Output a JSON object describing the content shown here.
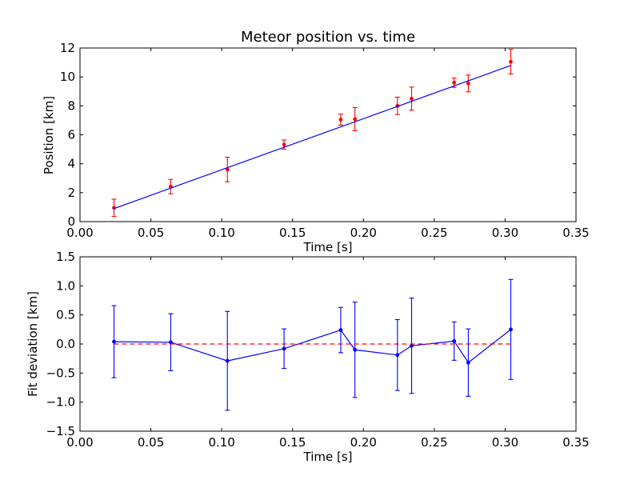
{
  "chart_data": [
    {
      "type": "scatter",
      "title": "Meteor position vs. time",
      "xlabel": "Time [s]",
      "ylabel": "Position [km]",
      "xlim": [
        0.0,
        0.35
      ],
      "ylim": [
        0,
        12
      ],
      "xticks": [
        "0.00",
        "0.05",
        "0.10",
        "0.15",
        "0.20",
        "0.25",
        "0.30",
        "0.35"
      ],
      "yticks": [
        "0",
        "2",
        "4",
        "6",
        "8",
        "10",
        "12"
      ],
      "grid": false,
      "series": [
        {
          "kind": "errorbar-points",
          "color": "#ff0000",
          "x": [
            0.024,
            0.064,
            0.104,
            0.144,
            0.184,
            0.194,
            0.224,
            0.234,
            0.264,
            0.274,
            0.304
          ],
          "y": [
            0.95,
            2.42,
            3.6,
            5.32,
            7.05,
            7.08,
            8.0,
            8.5,
            9.6,
            9.55,
            11.05
          ],
          "yerr": [
            0.6,
            0.5,
            0.85,
            0.32,
            0.38,
            0.8,
            0.6,
            0.8,
            0.32,
            0.58,
            0.85
          ]
        },
        {
          "kind": "fit-line",
          "color": "#0000ff",
          "x": [
            0.024,
            0.304
          ],
          "y": [
            0.9,
            10.79
          ]
        }
      ]
    },
    {
      "type": "line",
      "title": "",
      "xlabel": "Time [s]",
      "ylabel": "Fit deviation [km]",
      "xlim": [
        0.0,
        0.35
      ],
      "ylim": [
        -1.5,
        1.5
      ],
      "xticks": [
        "0.00",
        "0.05",
        "0.10",
        "0.15",
        "0.20",
        "0.25",
        "0.30",
        "0.35"
      ],
      "yticks": [
        "−1.5",
        "−1.0",
        "−0.5",
        "0.0",
        "0.5",
        "1.0",
        "1.5"
      ],
      "grid": false,
      "series": [
        {
          "kind": "errorbar-line",
          "color": "#0000ff",
          "x": [
            0.024,
            0.064,
            0.104,
            0.144,
            0.184,
            0.194,
            0.224,
            0.234,
            0.264,
            0.274,
            0.304
          ],
          "y": [
            0.04,
            0.03,
            -0.29,
            -0.08,
            0.24,
            -0.1,
            -0.19,
            -0.03,
            0.05,
            -0.32,
            0.25
          ],
          "yerr": [
            0.62,
            0.49,
            0.85,
            0.34,
            0.39,
            0.82,
            0.61,
            0.82,
            0.33,
            0.58,
            0.86
          ]
        },
        {
          "kind": "zero-reference",
          "color": "#ff0000",
          "x": [
            0.024,
            0.304
          ],
          "y": [
            0.0,
            0.0
          ]
        }
      ]
    }
  ]
}
